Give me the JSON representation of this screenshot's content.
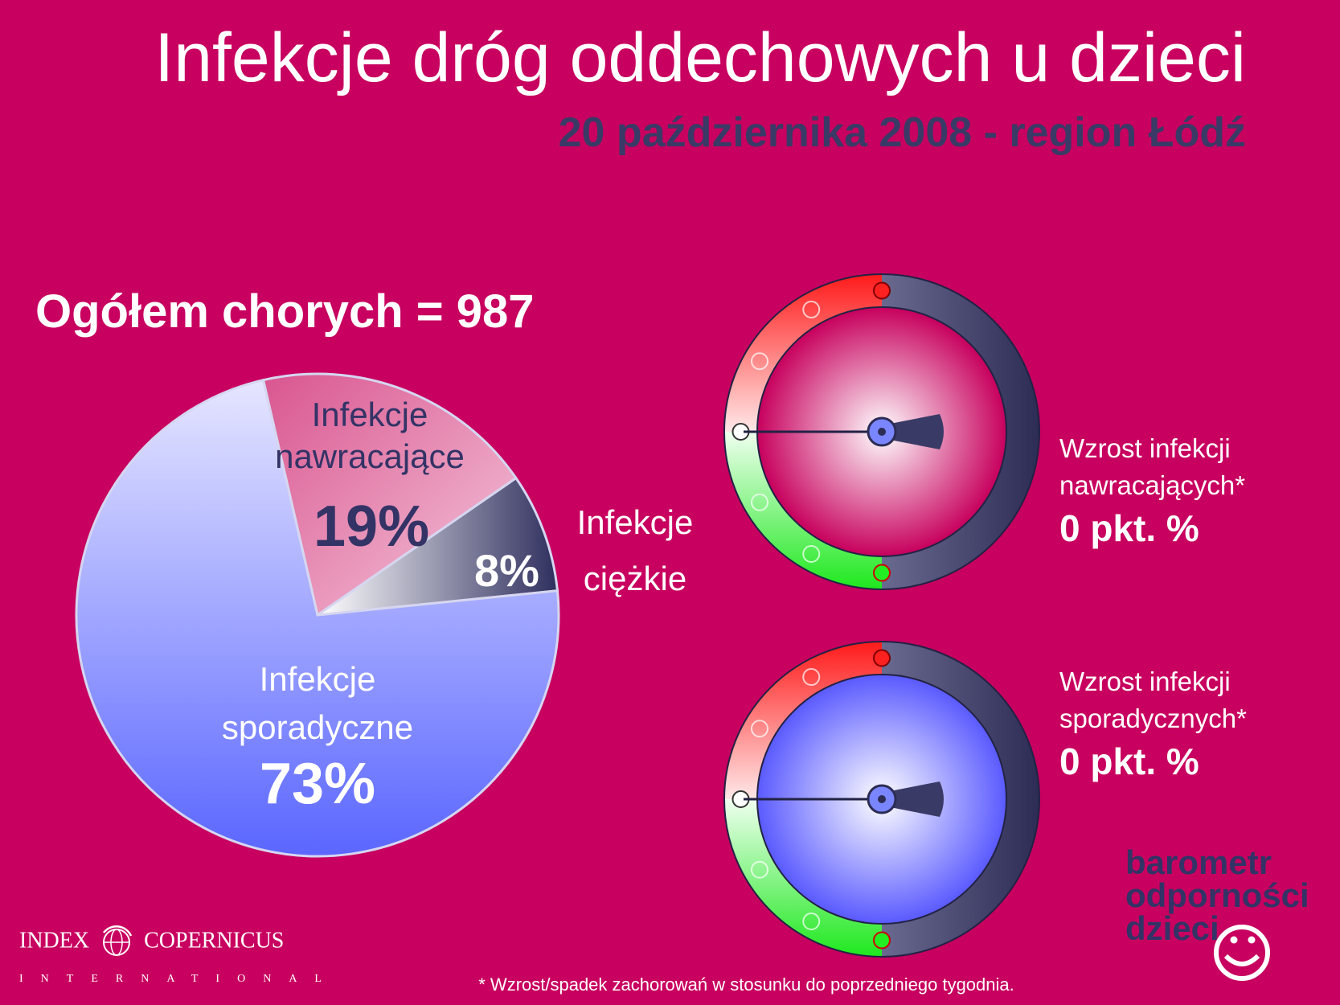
{
  "title": "Infekcje dróg oddechowych u dzieci",
  "subtitle": "20 października 2008 - region Łódź",
  "total": "Ogółem chorych = 987",
  "chart_data": {
    "type": "pie",
    "slices": [
      {
        "label_line1": "Infekcje",
        "label_line2": "nawracające",
        "value": 19,
        "value_label": "19%"
      },
      {
        "label_line1": "Infekcje",
        "label_line2": "ciężkie",
        "value": 8,
        "value_label": "8%"
      },
      {
        "label_line1": "Infekcje",
        "label_line2": "sporadyczne",
        "value": 73,
        "value_label": "73%"
      }
    ]
  },
  "gauges": [
    {
      "text_line1": "Wzrost infekcji",
      "text_line2": "nawracających*",
      "value_text": "0 pkt. %",
      "value": 0
    },
    {
      "text_line1": "Wzrost infekcji",
      "text_line2": "sporadycznych*",
      "value_text": "0 pkt. %",
      "value": 0
    }
  ],
  "footnote": "* Wzrost/spadek zachorowań w stosunku do poprzedniego tygodnia.",
  "logo": {
    "line1": "INDEX",
    "line2": "COPERNICUS",
    "line3": "INTERNATIONAL"
  },
  "brand": {
    "line1": "barometr",
    "line2": "odporności",
    "line3": "dzieci"
  },
  "colors": {
    "background": "#c8005f",
    "navy": "#333366",
    "pink_slice": "#e882b2",
    "blue_slice": "#8f99ff",
    "gauge_red": "#ff2020",
    "gauge_green": "#22ee22"
  }
}
